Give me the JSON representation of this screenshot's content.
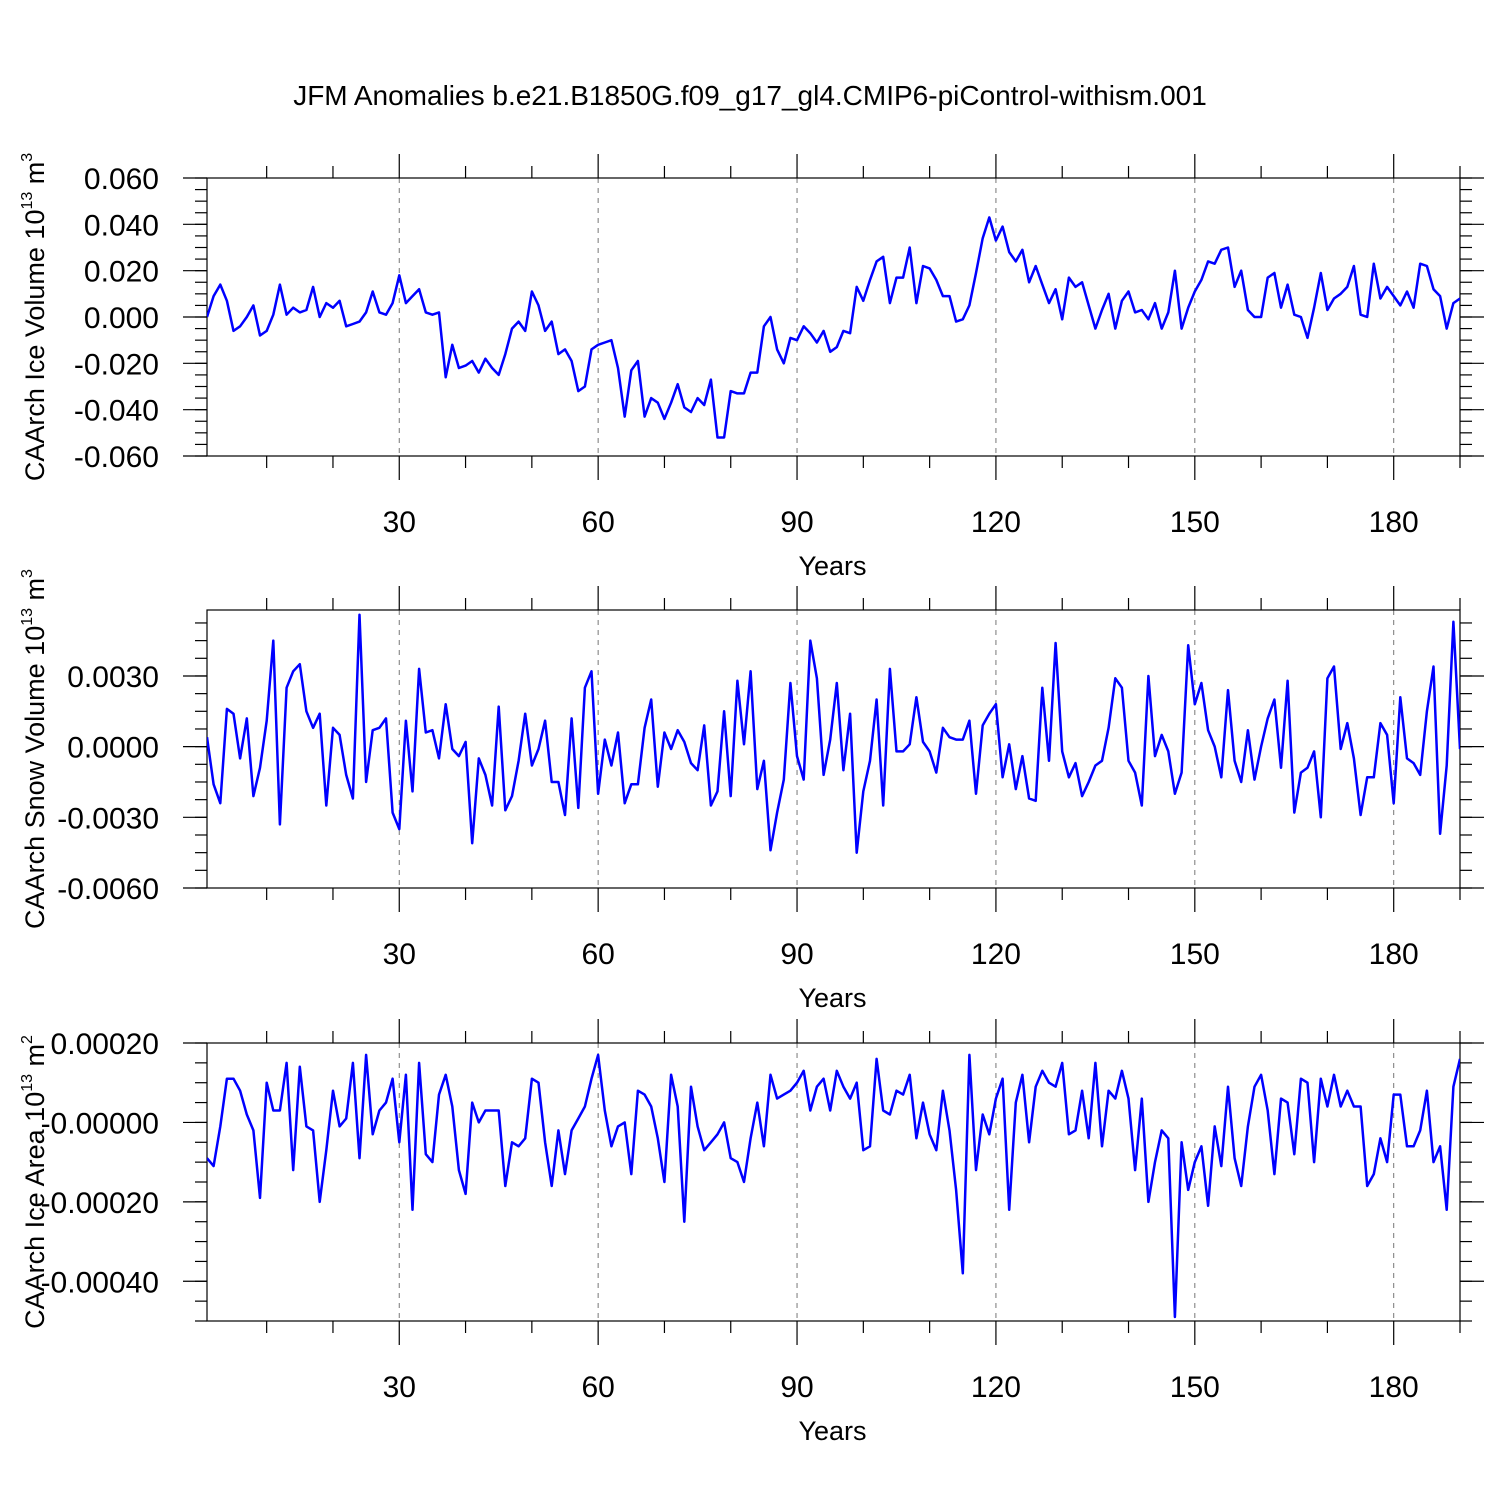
{
  "chart_data": [
    {
      "type": "line",
      "title": "JFM Anomalies b.e21.B1850G.f09_g17_gl4.CMIP6-piControl-withism.001",
      "xlabel": "Years",
      "ylabel": "CAArch Ice Volume 10",
      "ylabel_exp": "13",
      "ylabel_unit": " m",
      "ylabel_unit_exp": "3",
      "xlim": [
        1,
        190
      ],
      "ylim": [
        -0.06,
        0.06
      ],
      "xticks": [
        "30",
        "60",
        "90",
        "120",
        "150",
        "180"
      ],
      "xtick_values": [
        30,
        60,
        90,
        120,
        150,
        180
      ],
      "yticks": [
        "0.060",
        "0.040",
        "0.020",
        "0.000",
        "-0.020",
        "-0.040",
        "-0.060"
      ],
      "ytick_values": [
        0.06,
        0.04,
        0.02,
        0.0,
        -0.02,
        -0.04,
        -0.06
      ],
      "color": "#0000ff",
      "series": [
        {
          "name": "CAArch Ice Volume",
          "values": [
            0.0,
            0.009,
            0.014,
            0.007,
            -0.006,
            -0.004,
            0.0,
            0.005,
            -0.008,
            -0.006,
            0.001,
            0.014,
            0.001,
            0.004,
            0.002,
            0.003,
            0.013,
            0.0,
            0.006,
            0.004,
            0.007,
            -0.004,
            -0.003,
            -0.002,
            0.002,
            0.011,
            0.002,
            0.001,
            0.006,
            0.018,
            0.006,
            0.009,
            0.012,
            0.002,
            0.001,
            0.002,
            -0.026,
            -0.012,
            -0.022,
            -0.021,
            -0.019,
            -0.024,
            -0.018,
            -0.022,
            -0.025,
            -0.016,
            -0.005,
            -0.002,
            -0.006,
            0.011,
            0.005,
            -0.006,
            -0.002,
            -0.016,
            -0.014,
            -0.019,
            -0.032,
            -0.03,
            -0.014,
            -0.012,
            -0.011,
            -0.01,
            -0.022,
            -0.043,
            -0.023,
            -0.019,
            -0.043,
            -0.035,
            -0.037,
            -0.044,
            -0.037,
            -0.029,
            -0.039,
            -0.041,
            -0.035,
            -0.038,
            -0.027,
            -0.052,
            -0.052,
            -0.032,
            -0.033,
            -0.033,
            -0.024,
            -0.024,
            -0.004,
            0.0,
            -0.014,
            -0.02,
            -0.009,
            -0.01,
            -0.004,
            -0.007,
            -0.011,
            -0.006,
            -0.015,
            -0.013,
            -0.006,
            -0.007,
            0.013,
            0.007,
            0.016,
            0.024,
            0.026,
            0.006,
            0.017,
            0.017,
            0.03,
            0.006,
            0.022,
            0.021,
            0.016,
            0.009,
            0.009,
            -0.002,
            -0.001,
            0.005,
            0.019,
            0.034,
            0.043,
            0.033,
            0.039,
            0.028,
            0.024,
            0.029,
            0.015,
            0.022,
            0.014,
            0.006,
            0.012,
            -0.001,
            0.017,
            0.013,
            0.015,
            0.005,
            -0.005,
            0.003,
            0.01,
            -0.005,
            0.007,
            0.011,
            0.002,
            0.003,
            -0.001,
            0.006,
            -0.005,
            0.002,
            0.02,
            -0.005,
            0.004,
            0.011,
            0.016,
            0.024,
            0.023,
            0.029,
            0.03,
            0.013,
            0.02,
            0.003,
            0.0,
            0.0,
            0.017,
            0.019,
            0.004,
            0.014,
            0.001,
            0.0,
            -0.009,
            0.004,
            0.019,
            0.003,
            0.008,
            0.01,
            0.013,
            0.022,
            0.001,
            0.0,
            0.023,
            0.008,
            0.013,
            0.009,
            0.005,
            0.011,
            0.004,
            0.023,
            0.022,
            0.012,
            0.009,
            -0.005,
            0.006,
            0.008
          ]
        }
      ]
    },
    {
      "type": "line",
      "xlabel": "Years",
      "ylabel": "CAArch Snow Volume 10",
      "ylabel_exp": "13",
      "ylabel_unit": " m",
      "ylabel_unit_exp": "3",
      "xlim": [
        1,
        190
      ],
      "ylim": [
        -0.006,
        0.0058
      ],
      "xticks": [
        "30",
        "60",
        "90",
        "120",
        "150",
        "180"
      ],
      "xtick_values": [
        30,
        60,
        90,
        120,
        150,
        180
      ],
      "yticks": [
        "0.0030",
        "0.0000",
        "-0.0030",
        "-0.0060"
      ],
      "ytick_values": [
        0.003,
        0.0,
        -0.003,
        -0.006
      ],
      "color": "#0000ff",
      "series": [
        {
          "name": "CAArch Snow Volume",
          "values": [
            0.0004,
            -0.0016,
            -0.0024,
            0.0016,
            0.0014,
            -0.0005,
            0.0012,
            -0.0021,
            -0.0009,
            0.0011,
            0.0045,
            -0.0033,
            0.0025,
            0.0032,
            0.0035,
            0.0015,
            0.0008,
            0.0014,
            -0.0025,
            0.0008,
            0.0005,
            -0.0012,
            -0.0022,
            0.0056,
            -0.0015,
            0.0007,
            0.0008,
            0.0012,
            -0.0028,
            -0.0035,
            0.0011,
            -0.0019,
            0.0033,
            0.0006,
            0.0007,
            -0.0005,
            0.0018,
            -0.0001,
            -0.0004,
            0.0002,
            -0.0041,
            -0.0005,
            -0.0012,
            -0.0025,
            0.0017,
            -0.0027,
            -0.0021,
            -0.0006,
            0.0014,
            -0.0008,
            -0.0001,
            0.0011,
            -0.0015,
            -0.0015,
            -0.0029,
            0.0012,
            -0.0026,
            0.0025,
            0.0032,
            -0.002,
            0.0003,
            -0.0008,
            0.0006,
            -0.0024,
            -0.0016,
            -0.0016,
            0.0008,
            0.002,
            -0.0017,
            0.0006,
            -0.0001,
            0.0007,
            0.0002,
            -0.0007,
            -0.001,
            0.0009,
            -0.0025,
            -0.0019,
            0.0015,
            -0.0021,
            0.0028,
            0.0001,
            0.0032,
            -0.0018,
            -0.0006,
            -0.0044,
            -0.0028,
            -0.0014,
            0.0027,
            -0.0004,
            -0.0014,
            0.0045,
            0.0029,
            -0.0012,
            0.0003,
            0.0027,
            -0.001,
            0.0014,
            -0.0045,
            -0.0019,
            -0.0006,
            0.002,
            -0.0025,
            0.0033,
            -0.0002,
            -0.0002,
            0.0001,
            0.0021,
            0.0002,
            -0.0002,
            -0.0011,
            0.0008,
            0.0004,
            0.0003,
            0.0003,
            0.0011,
            -0.002,
            0.0009,
            0.0014,
            0.0018,
            -0.0013,
            0.0001,
            -0.0018,
            -0.0004,
            -0.0022,
            -0.0023,
            0.0025,
            -0.0006,
            0.0044,
            -0.0002,
            -0.0013,
            -0.0007,
            -0.0021,
            -0.0015,
            -0.0008,
            -0.0006,
            0.0008,
            0.0029,
            0.0025,
            -0.0006,
            -0.0011,
            -0.0025,
            0.003,
            -0.0004,
            0.0005,
            -0.0002,
            -0.002,
            -0.0011,
            0.0043,
            0.0018,
            0.0027,
            0.0007,
            0.0,
            -0.0013,
            0.0024,
            -0.0006,
            -0.0015,
            0.0007,
            -0.0014,
            0.0,
            0.0012,
            0.002,
            -0.0009,
            0.0028,
            -0.0028,
            -0.0011,
            -0.0009,
            -0.0002,
            -0.003,
            0.0029,
            0.0034,
            -0.0001,
            0.001,
            -0.0005,
            -0.0029,
            -0.0013,
            -0.0013,
            0.001,
            0.0005,
            -0.0024,
            0.0021,
            -0.0005,
            -0.0007,
            -0.0012,
            0.0015,
            0.0034,
            -0.0037,
            -0.0008,
            0.0053,
            -0.0001
          ]
        }
      ]
    },
    {
      "type": "line",
      "xlabel": "Years",
      "ylabel": "CAArch Ice Area 10",
      "ylabel_exp": "13",
      "ylabel_unit": " m",
      "ylabel_unit_exp": "2",
      "xlim": [
        1,
        190
      ],
      "ylim": [
        -0.0005,
        0.0002
      ],
      "xticks": [
        "30",
        "60",
        "90",
        "120",
        "150",
        "180"
      ],
      "xtick_values": [
        30,
        60,
        90,
        120,
        150,
        180
      ],
      "yticks": [
        "0.00020",
        "-0.00000",
        "-0.00020",
        "-0.00040"
      ],
      "ytick_values": [
        0.0002,
        0.0,
        -0.0002,
        -0.0004
      ],
      "color": "#0000ff",
      "series": [
        {
          "name": "CAArch Ice Area",
          "values": [
            -9e-05,
            -0.00011,
            -1e-05,
            0.00011,
            0.00011,
            8e-05,
            2e-05,
            -2e-05,
            -0.00019,
            0.0001,
            3e-05,
            3e-05,
            0.00015,
            -0.00012,
            0.00014,
            -1e-05,
            -2e-05,
            -0.0002,
            -7e-05,
            8e-05,
            -1e-05,
            1e-05,
            0.00015,
            -9e-05,
            0.00017,
            -3e-05,
            3e-05,
            5e-05,
            0.00011,
            -5e-05,
            0.00012,
            -0.00022,
            0.00015,
            -8e-05,
            -0.0001,
            7e-05,
            0.00012,
            4e-05,
            -0.00012,
            -0.00018,
            5e-05,
            0.0,
            3e-05,
            3e-05,
            3e-05,
            -0.00016,
            -5e-05,
            -6e-05,
            -4e-05,
            0.00011,
            0.0001,
            -5e-05,
            -0.00016,
            -2e-05,
            -0.00013,
            -2e-05,
            1e-05,
            4e-05,
            0.00011,
            0.00017,
            3e-05,
            -6e-05,
            -1e-05,
            0.0,
            -0.00013,
            8e-05,
            7e-05,
            4e-05,
            -4e-05,
            -0.00015,
            0.00012,
            4e-05,
            -0.00025,
            9e-05,
            -1e-05,
            -7e-05,
            -5e-05,
            -3e-05,
            0.0,
            -9e-05,
            -0.0001,
            -0.00015,
            -4e-05,
            5e-05,
            -6e-05,
            0.00012,
            6e-05,
            7e-05,
            8e-05,
            0.0001,
            0.00013,
            3e-05,
            9e-05,
            0.00011,
            3e-05,
            0.00013,
            9e-05,
            6e-05,
            0.0001,
            -7e-05,
            -6e-05,
            0.00016,
            3e-05,
            2e-05,
            8e-05,
            7e-05,
            0.00012,
            -4e-05,
            5e-05,
            -3e-05,
            -7e-05,
            8e-05,
            -2e-05,
            -0.00017,
            -0.00038,
            0.00017,
            -0.00012,
            2e-05,
            -3e-05,
            6e-05,
            0.00011,
            -0.00022,
            5e-05,
            0.00012,
            -5e-05,
            9e-05,
            0.00013,
            0.0001,
            9e-05,
            0.00015,
            -3e-05,
            -2e-05,
            8e-05,
            -4e-05,
            0.00015,
            -6e-05,
            8e-05,
            6e-05,
            0.00013,
            6e-05,
            -0.00012,
            6e-05,
            -0.0002,
            -0.0001,
            -2e-05,
            -4e-05,
            -0.00049,
            -5e-05,
            -0.00017,
            -0.0001,
            -6e-05,
            -0.00021,
            -1e-05,
            -0.00011,
            9e-05,
            -9e-05,
            -0.00016,
            -1e-05,
            9e-05,
            0.00012,
            3e-05,
            -0.00013,
            6e-05,
            5e-05,
            -8e-05,
            0.00011,
            0.0001,
            -0.0001,
            0.00011,
            4e-05,
            0.00012,
            4e-05,
            8e-05,
            4e-05,
            4e-05,
            -0.00016,
            -0.00013,
            -4e-05,
            -0.0001,
            7e-05,
            7e-05,
            -6e-05,
            -6e-05,
            -2e-05,
            8e-05,
            -0.0001,
            -6e-05,
            -0.00022,
            9e-05,
            0.00016
          ]
        }
      ]
    }
  ]
}
